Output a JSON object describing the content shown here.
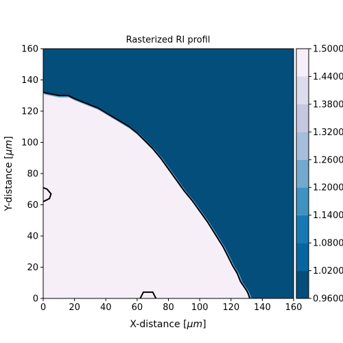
{
  "chart_data": {
    "type": "heatmap",
    "title": "Rasterized RI profil",
    "xlabel_prefix": "X-distance [",
    "xlabel_unit": "μm",
    "xlabel_suffix": "]",
    "ylabel_prefix": "Y-distance [",
    "ylabel_unit": "μm",
    "ylabel_suffix": "]",
    "xlim": [
      0,
      160
    ],
    "ylim": [
      0,
      160
    ],
    "x_ticks": [
      "0",
      "20",
      "40",
      "60",
      "80",
      "100",
      "120",
      "140",
      "160"
    ],
    "y_ticks": [
      "0",
      "20",
      "40",
      "60",
      "80",
      "100",
      "120",
      "140",
      "160"
    ],
    "background_value": 1.0,
    "inside_value": 1.44,
    "boundary": {
      "x": [
        0,
        5,
        10,
        16,
        20,
        25,
        30,
        35,
        40,
        45,
        50,
        55,
        60,
        65,
        70,
        75,
        80,
        85,
        90,
        95,
        100,
        105,
        110,
        115,
        118,
        121,
        124,
        126,
        128,
        130,
        131,
        132
      ],
      "y": [
        132,
        131,
        130,
        130,
        128,
        126,
        124,
        122,
        119,
        116,
        113,
        110,
        106,
        101,
        96,
        90,
        83,
        76,
        69,
        63,
        56,
        49,
        41,
        33,
        27,
        21,
        16,
        11,
        8,
        5,
        3,
        0
      ]
    },
    "extra_contours": [
      {
        "x": [
          0,
          2.5,
          5,
          4,
          2,
          0
        ],
        "y": [
          71,
          70,
          67,
          64,
          63,
          62
        ]
      },
      {
        "x": [
          62,
          64,
          70,
          72
        ],
        "y": [
          0,
          4,
          4,
          0
        ]
      }
    ],
    "colorbar": {
      "levels": [
        0.96,
        1.02,
        1.08,
        1.14,
        1.2,
        1.26,
        1.32,
        1.38,
        1.44,
        1.5
      ],
      "labels": [
        "0.9600",
        "1.0200",
        "1.0800",
        "1.1400",
        "1.2000",
        "1.2600",
        "1.3200",
        "1.3800",
        "1.4400",
        "1.5000"
      ],
      "colors": [
        "#034e7b",
        "#0566a3",
        "#1779b4",
        "#3f93c2",
        "#73a9cf",
        "#a6bddb",
        "#c6c8e2",
        "#dcdcec",
        "#f6eff7"
      ]
    }
  }
}
